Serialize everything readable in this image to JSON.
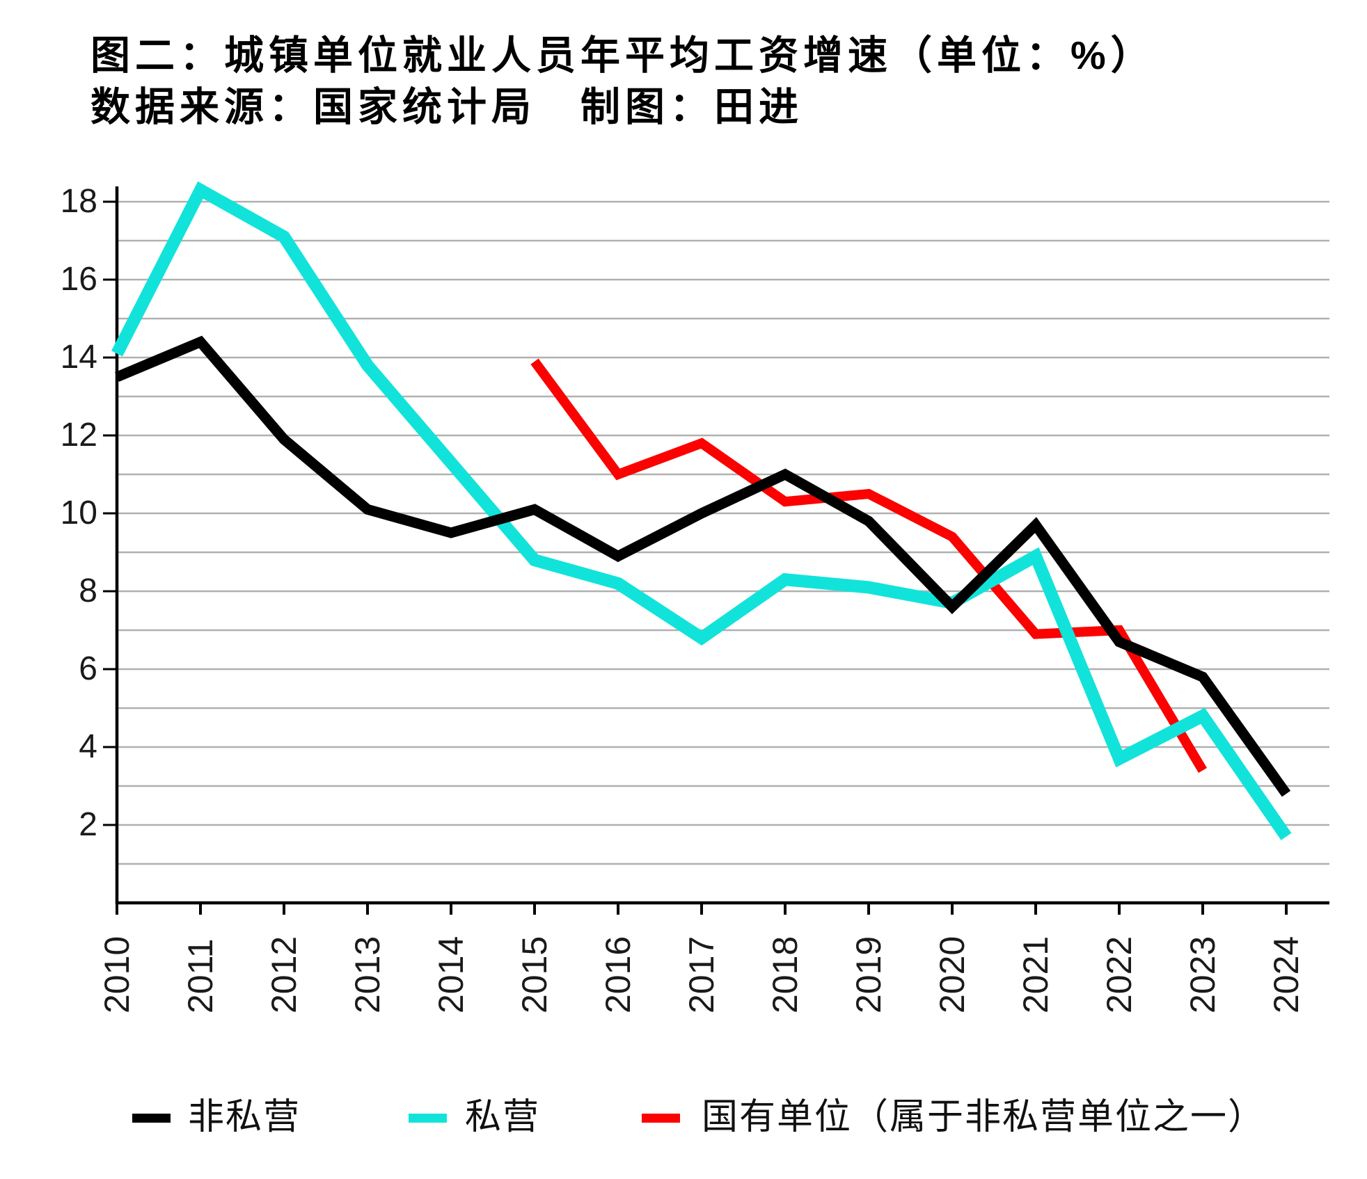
{
  "chart_data": {
    "type": "line",
    "title": "图二：城镇单位就业人员年平均工资增速（单位：%）",
    "subtitle": "数据来源：国家统计局　制图：田进",
    "x": [
      2010,
      2011,
      2012,
      2013,
      2014,
      2015,
      2016,
      2017,
      2018,
      2019,
      2020,
      2021,
      2022,
      2023,
      2024
    ],
    "x_tick_labels": [
      "2010",
      "2011",
      "2012",
      "2013",
      "2014",
      "2015",
      "2016",
      "2017",
      "2018",
      "2019",
      "2020",
      "2021",
      "2022",
      "2023",
      "2024"
    ],
    "y_tick_labels": [
      2,
      4,
      6,
      8,
      10,
      12,
      14,
      16,
      18
    ],
    "ylim": [
      0,
      18.6
    ],
    "grid": "horizontal gridline at every 1 unit from 1 to 18",
    "legend_position": "bottom",
    "xlabel": "",
    "ylabel": "",
    "series": [
      {
        "name": "非私营",
        "key": "non-private",
        "color": "#000000",
        "x_start": 2010,
        "values": [
          13.5,
          14.4,
          11.9,
          10.1,
          9.5,
          10.1,
          8.9,
          10.0,
          11.0,
          9.8,
          7.6,
          9.7,
          6.7,
          5.8,
          2.8
        ]
      },
      {
        "name": "私营",
        "key": "private",
        "color": "#12e3da",
        "x_start": 2010,
        "values": [
          14.1,
          18.3,
          17.1,
          13.8,
          11.3,
          8.8,
          8.2,
          6.8,
          8.3,
          8.1,
          7.7,
          8.9,
          3.7,
          4.8,
          1.7
        ]
      },
      {
        "name": "国有单位（属于非私营单位之一）",
        "key": "state-owned",
        "color": "#fb0200",
        "x_start": 2015,
        "values": [
          13.9,
          11.0,
          11.8,
          10.3,
          10.5,
          9.4,
          6.9,
          7.0,
          3.4
        ]
      }
    ]
  },
  "legend": {
    "items": [
      {
        "label": "非私营"
      },
      {
        "label": "私营"
      },
      {
        "label": "国有单位（属于非私营单位之一）"
      }
    ]
  },
  "colors": {
    "gridline": "#b0b0b0",
    "axis": "#000000",
    "background": "#ffffff"
  }
}
